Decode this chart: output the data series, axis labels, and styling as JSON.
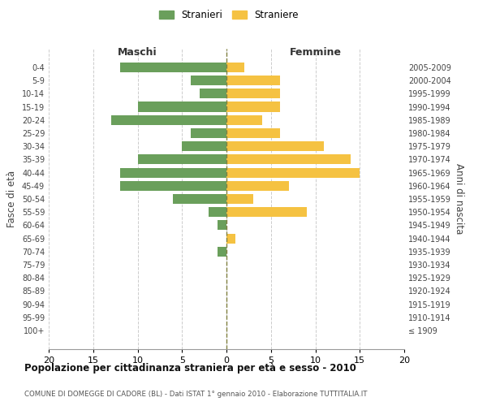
{
  "age_groups": [
    "0-4",
    "5-9",
    "10-14",
    "15-19",
    "20-24",
    "25-29",
    "30-34",
    "35-39",
    "40-44",
    "45-49",
    "50-54",
    "55-59",
    "60-64",
    "65-69",
    "70-74",
    "75-79",
    "80-84",
    "85-89",
    "90-94",
    "95-99",
    "100+"
  ],
  "birth_years": [
    "2005-2009",
    "2000-2004",
    "1995-1999",
    "1990-1994",
    "1985-1989",
    "1980-1984",
    "1975-1979",
    "1970-1974",
    "1965-1969",
    "1960-1964",
    "1955-1959",
    "1950-1954",
    "1945-1949",
    "1940-1944",
    "1935-1939",
    "1930-1934",
    "1925-1929",
    "1920-1924",
    "1915-1919",
    "1910-1914",
    "≤ 1909"
  ],
  "maschi": [
    12,
    4,
    3,
    10,
    13,
    4,
    5,
    10,
    12,
    12,
    6,
    2,
    1,
    0,
    1,
    0,
    0,
    0,
    0,
    0,
    0
  ],
  "femmine": [
    2,
    6,
    6,
    6,
    4,
    6,
    11,
    14,
    15,
    7,
    3,
    9,
    0,
    1,
    0,
    0,
    0,
    0,
    0,
    0,
    0
  ],
  "male_color": "#6a9f5b",
  "female_color": "#f5c242",
  "center_line_color": "#808040",
  "grid_color": "#cccccc",
  "bg_color": "#ffffff",
  "title": "Popolazione per cittadinanza straniera per età e sesso - 2010",
  "subtitle": "COMUNE DI DOMEGGE DI CADORE (BL) - Dati ISTAT 1° gennaio 2010 - Elaborazione TUTTITALIA.IT",
  "ylabel_left": "Fasce di età",
  "ylabel_right": "Anni di nascita",
  "xlabel_maschi": "Maschi",
  "xlabel_femmine": "Femmine",
  "legend_stranieri": "Stranieri",
  "legend_straniere": "Straniere",
  "xlim": 20
}
